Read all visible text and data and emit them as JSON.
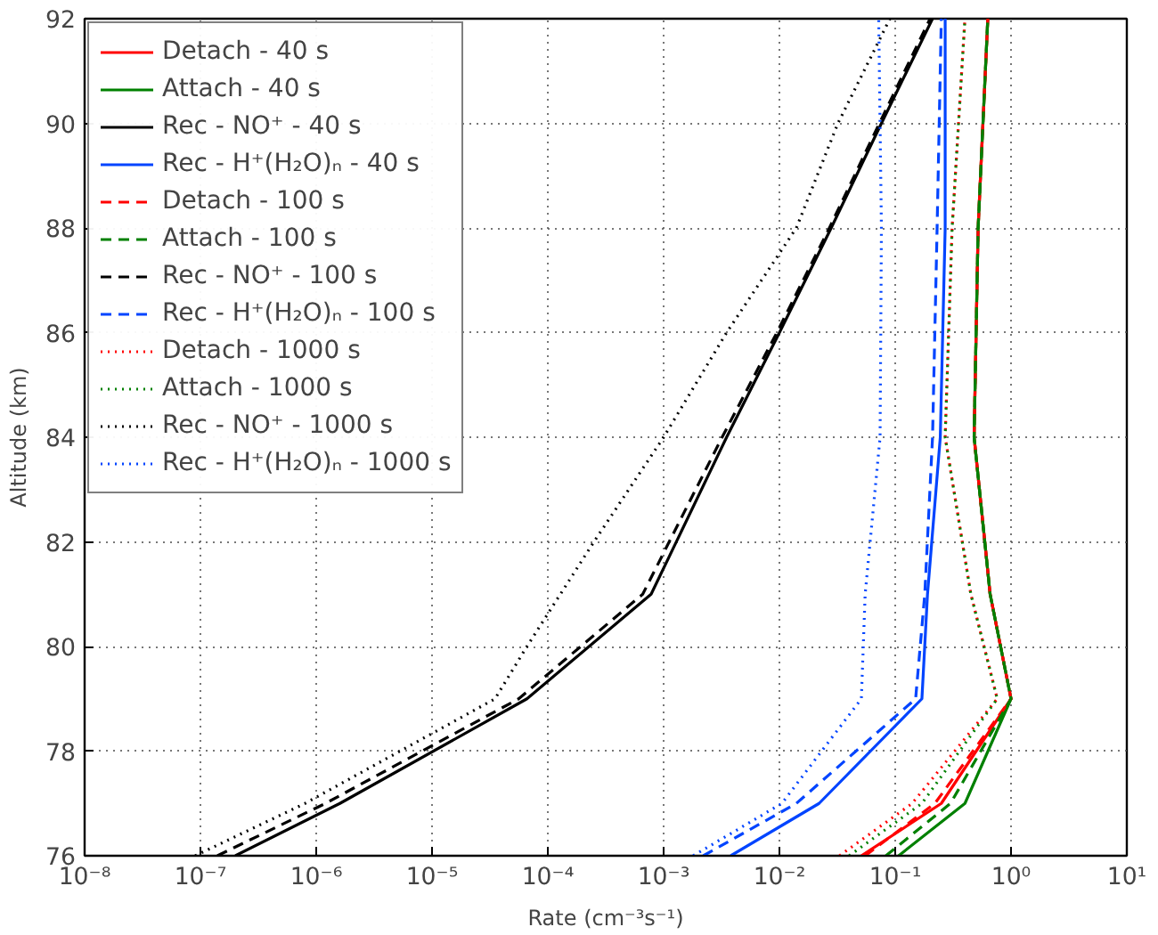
{
  "chart_data": {
    "type": "line",
    "xlabel": "Rate (cm⁻³s⁻¹)",
    "ylabel": "Altitude (km)",
    "log": "x",
    "grid": true,
    "legend": "top left",
    "marker": "none",
    "xlim": [
      1e-08,
      10
    ],
    "xticks": [
      {
        "value": 1e-08,
        "label": "10⁻⁸"
      },
      {
        "value": 1e-07,
        "label": "10⁻⁷"
      },
      {
        "value": 1e-06,
        "label": "10⁻⁶"
      },
      {
        "value": 1e-05,
        "label": "10⁻⁵"
      },
      {
        "value": 0.0001,
        "label": "10⁻⁴"
      },
      {
        "value": 0.001,
        "label": "10⁻³"
      },
      {
        "value": 0.01,
        "label": "10⁻²"
      },
      {
        "value": 0.1,
        "label": "10⁻¹"
      },
      {
        "value": 1,
        "label": "10⁰"
      },
      {
        "value": 10,
        "label": "10¹"
      }
    ],
    "ylim": [
      76,
      92
    ],
    "yticks": [
      76,
      78,
      80,
      82,
      84,
      86,
      88,
      90,
      92
    ],
    "series": [
      {
        "name": "Detach - 40 s",
        "color": "#ff0000",
        "line_style": "solid",
        "x": [
          0.051,
          0.25,
          1.0,
          0.66,
          0.48,
          0.52,
          0.63
        ],
        "values": [
          76,
          77,
          79,
          81,
          84,
          88,
          92
        ]
      },
      {
        "name": "Attach - 40 s",
        "color": "#008000",
        "line_style": "solid",
        "x": [
          0.107,
          0.4,
          1.0,
          0.66,
          0.48,
          0.52,
          0.63
        ],
        "values": [
          76,
          77,
          79,
          81,
          84,
          88,
          92
        ]
      },
      {
        "name": "Rec - NO⁺ - 40 s",
        "color": "#000000",
        "line_style": "solid",
        "x": [
          2e-07,
          1.6e-06,
          6.6e-05,
          0.00078,
          0.0035,
          0.01,
          0.028,
          0.076,
          0.21
        ],
        "values": [
          76,
          77,
          79,
          81,
          84,
          86,
          88,
          90,
          92
        ]
      },
      {
        "name": "Rec - H⁺(H₂O)ₙ - 40 s",
        "color": "#0044ff",
        "line_style": "solid",
        "x": [
          0.0038,
          0.022,
          0.17,
          0.19,
          0.245,
          0.27,
          0.27
        ],
        "values": [
          76,
          77,
          79,
          81,
          84,
          88,
          92
        ]
      },
      {
        "name": "Detach - 100 s",
        "color": "#ff0000",
        "line_style": "dashed",
        "x": [
          0.055,
          0.22,
          1.0,
          0.66,
          0.48,
          0.52,
          0.63
        ],
        "values": [
          76,
          77,
          79,
          81,
          84,
          88,
          92
        ]
      },
      {
        "name": "Attach - 100 s",
        "color": "#008000",
        "line_style": "dashed",
        "x": [
          0.083,
          0.3,
          1.0,
          0.66,
          0.48,
          0.52,
          0.63
        ],
        "values": [
          76,
          77,
          79,
          81,
          84,
          88,
          92
        ]
      },
      {
        "name": "Rec - NO⁺ - 100 s",
        "color": "#000000",
        "line_style": "dashed",
        "x": [
          1.4e-07,
          1.2e-06,
          5.6e-05,
          0.00066,
          0.0032,
          0.0095,
          0.027,
          0.073,
          0.2
        ],
        "values": [
          76,
          77,
          79,
          81,
          84,
          86,
          88,
          90,
          92
        ]
      },
      {
        "name": "Rec - H⁺(H₂O)ₙ - 100 s",
        "color": "#0044ff",
        "line_style": "dashed",
        "x": [
          0.0022,
          0.014,
          0.15,
          0.18,
          0.21,
          0.23,
          0.25
        ],
        "values": [
          76,
          77,
          79,
          81,
          84,
          88,
          92
        ]
      },
      {
        "name": "Detach - 1000 s",
        "color": "#ff0000",
        "line_style": "dotted",
        "x": [
          0.033,
          0.14,
          0.76,
          0.45,
          0.27,
          0.31,
          0.4
        ],
        "values": [
          76,
          77,
          79,
          81,
          84,
          88,
          92
        ]
      },
      {
        "name": "Attach - 1000 s",
        "color": "#008000",
        "line_style": "dotted",
        "x": [
          0.04,
          0.17,
          0.76,
          0.45,
          0.27,
          0.31,
          0.4
        ],
        "values": [
          76,
          77,
          79,
          81,
          84,
          88,
          92
        ]
      },
      {
        "name": "Rec - NO⁺ - 1000 s",
        "color": "#000000",
        "line_style": "dotted",
        "x": [
          9e-08,
          8e-07,
          3.5e-05,
          6.6e-05,
          0.00025,
          0.001,
          0.0035,
          0.014,
          0.032,
          0.09
        ],
        "values": [
          76,
          77,
          79,
          80,
          82,
          84,
          86,
          88,
          90,
          92
        ]
      },
      {
        "name": "Rec - H⁺(H₂O)ₙ - 1000 s",
        "color": "#0044ff",
        "line_style": "dotted",
        "x": [
          0.0018,
          0.0105,
          0.051,
          0.055,
          0.074,
          0.076,
          0.072
        ],
        "values": [
          76,
          77,
          79,
          81,
          84,
          88,
          92
        ]
      }
    ]
  }
}
